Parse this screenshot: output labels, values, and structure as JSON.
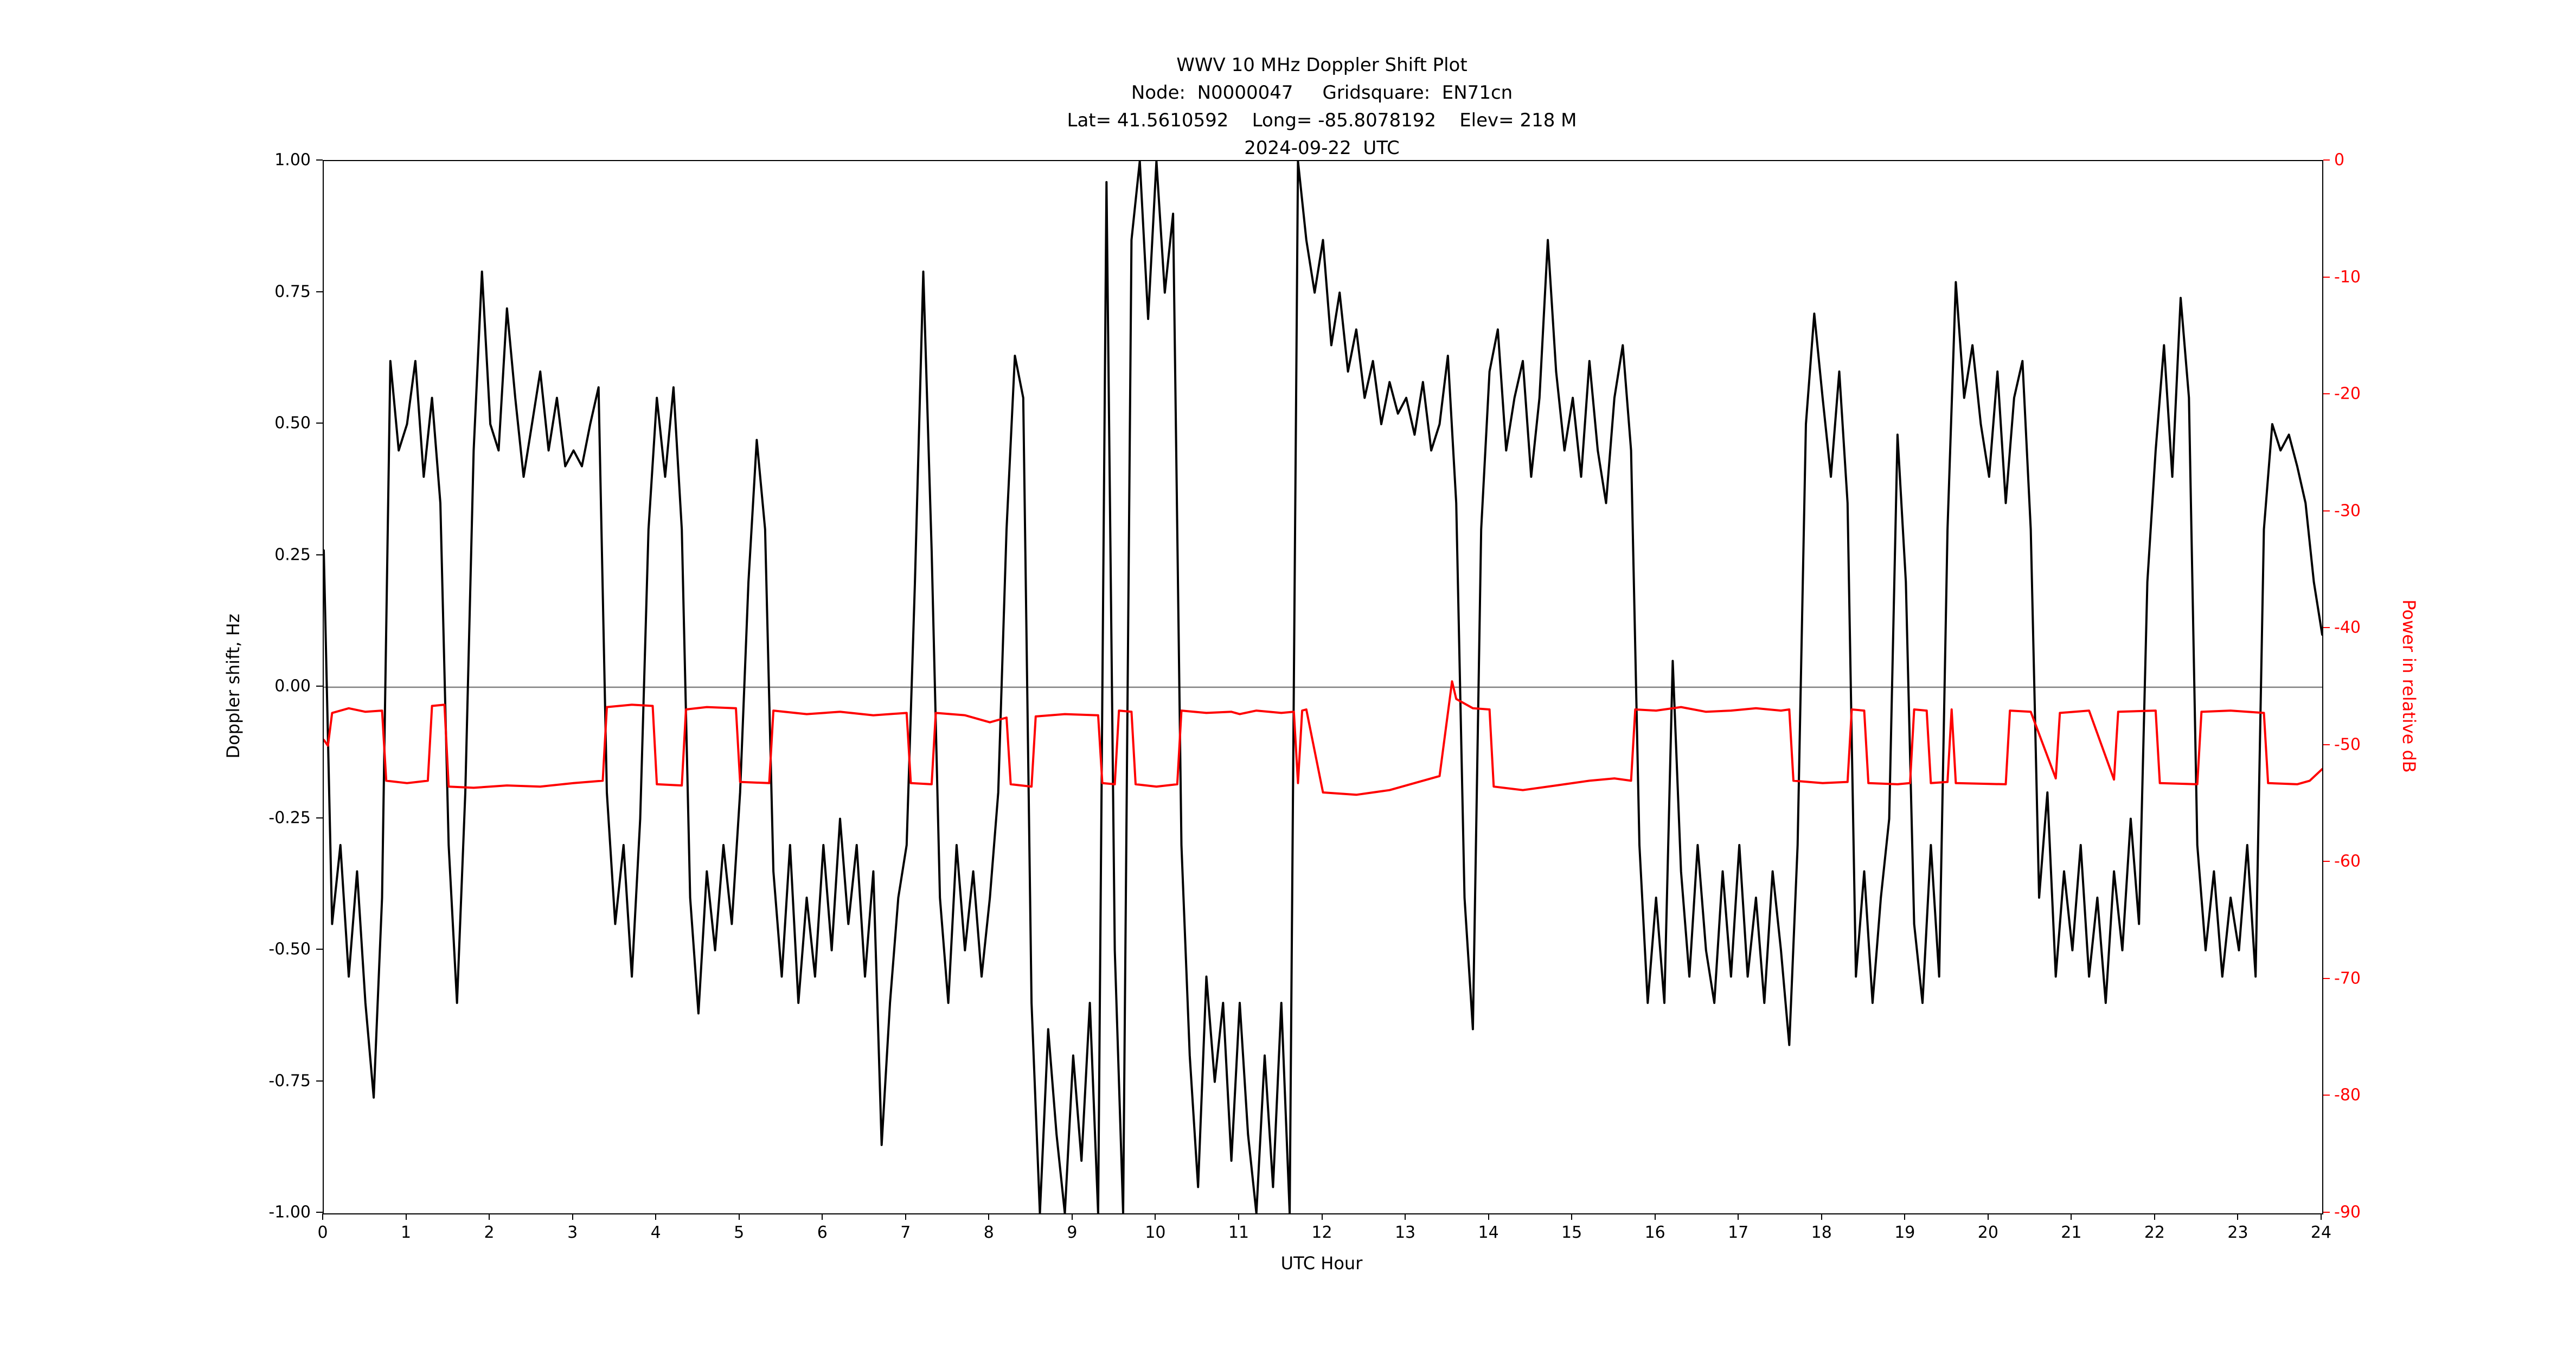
{
  "chart_data": {
    "type": "line",
    "title_lines": [
      "WWV 10 MHz Doppler Shift Plot",
      "Node:  N0000047     Gridsquare:  EN71cn",
      "Lat= 41.5610592    Long= -85.8078192    Elev= 218 M",
      "2024-09-22  UTC"
    ],
    "xlabel": "UTC Hour",
    "ylabel_left": "Doppler shift, Hz",
    "ylabel_right": "Power in relative dB",
    "xlim": [
      0,
      24
    ],
    "ylim_left": [
      -1,
      1
    ],
    "ylim_right": [
      -90,
      0
    ],
    "xticks": [
      "0",
      "1",
      "2",
      "3",
      "4",
      "5",
      "6",
      "7",
      "8",
      "9",
      "10",
      "11",
      "12",
      "13",
      "14",
      "15",
      "16",
      "17",
      "18",
      "19",
      "20",
      "21",
      "22",
      "23",
      "24"
    ],
    "yticks_left": [
      "1.00",
      "0.75",
      "0.50",
      "0.25",
      "0.00",
      "-0.25",
      "-0.50",
      "-0.75",
      "-1.00"
    ],
    "yticks_left_values": [
      1.0,
      0.75,
      0.5,
      0.25,
      0.0,
      -0.25,
      -0.5,
      -0.75,
      -1.0
    ],
    "yticks_right": [
      "0",
      "-10",
      "-20",
      "-30",
      "-40",
      "-50",
      "-60",
      "-70",
      "-80",
      "-90"
    ],
    "yticks_right_values": [
      0,
      -10,
      -20,
      -30,
      -40,
      -50,
      -60,
      -70,
      -80,
      -90
    ],
    "grid": false,
    "zero_line_value": 0.0,
    "colors": {
      "doppler": "#000000",
      "power": "#ff0000",
      "zero_line": "#808080"
    },
    "series": [
      {
        "name": "doppler_shift_hz",
        "axis": "left",
        "color": "#000000",
        "x_start": 0,
        "x_step": 0.1,
        "values": [
          0.26,
          -0.45,
          -0.3,
          -0.55,
          -0.35,
          -0.6,
          -0.78,
          -0.4,
          0.62,
          0.45,
          0.5,
          0.62,
          0.4,
          0.55,
          0.35,
          -0.3,
          -0.6,
          -0.2,
          0.45,
          0.79,
          0.5,
          0.45,
          0.72,
          0.55,
          0.4,
          0.5,
          0.6,
          0.45,
          0.55,
          0.42,
          0.45,
          0.42,
          0.5,
          0.57,
          -0.2,
          -0.45,
          -0.3,
          -0.55,
          -0.25,
          0.3,
          0.55,
          0.4,
          0.57,
          0.3,
          -0.4,
          -0.62,
          -0.35,
          -0.5,
          -0.3,
          -0.45,
          -0.2,
          0.2,
          0.47,
          0.3,
          -0.35,
          -0.55,
          -0.3,
          -0.6,
          -0.4,
          -0.55,
          -0.3,
          -0.5,
          -0.25,
          -0.45,
          -0.3,
          -0.55,
          -0.35,
          -0.87,
          -0.6,
          -0.4,
          -0.3,
          0.2,
          0.79,
          0.26,
          -0.4,
          -0.6,
          -0.3,
          -0.5,
          -0.35,
          -0.55,
          -0.4,
          -0.2,
          0.3,
          0.63,
          0.55,
          -0.6,
          -1,
          -0.65,
          -0.85,
          -1,
          -0.7,
          -0.9,
          -0.6,
          -1,
          0.96,
          -0.5,
          -1,
          0.85,
          1,
          0.7,
          1,
          0.75,
          0.9,
          -0.3,
          -0.7,
          -0.95,
          -0.55,
          -0.75,
          -0.6,
          -0.9,
          -0.6,
          -0.85,
          -1,
          -0.7,
          -0.95,
          -0.6,
          -1,
          1,
          0.85,
          0.75,
          0.85,
          0.65,
          0.75,
          0.6,
          0.68,
          0.55,
          0.62,
          0.5,
          0.58,
          0.52,
          0.55,
          0.48,
          0.58,
          0.45,
          0.5,
          0.63,
          0.35,
          -0.4,
          -0.65,
          0.3,
          0.6,
          0.68,
          0.45,
          0.55,
          0.62,
          0.4,
          0.55,
          0.85,
          0.6,
          0.45,
          0.55,
          0.4,
          0.62,
          0.45,
          0.35,
          0.55,
          0.65,
          0.45,
          -0.3,
          -0.6,
          -0.4,
          -0.6,
          0.05,
          -0.35,
          -0.55,
          -0.3,
          -0.5,
          -0.6,
          -0.35,
          -0.55,
          -0.3,
          -0.55,
          -0.4,
          -0.6,
          -0.35,
          -0.5,
          -0.68,
          -0.3,
          0.5,
          0.71,
          0.55,
          0.4,
          0.6,
          0.35,
          -0.55,
          -0.35,
          -0.6,
          -0.4,
          -0.25,
          0.48,
          0.2,
          -0.45,
          -0.6,
          -0.3,
          -0.55,
          0.3,
          0.77,
          0.55,
          0.65,
          0.5,
          0.4,
          0.6,
          0.35,
          0.55,
          0.62,
          0.3,
          -0.4,
          -0.2,
          -0.55,
          -0.35,
          -0.5,
          -0.3,
          -0.55,
          -0.4,
          -0.6,
          -0.35,
          -0.5,
          -0.25,
          -0.45,
          0.2,
          0.45,
          0.65,
          0.4,
          0.74,
          0.55,
          -0.3,
          -0.5,
          -0.35,
          -0.55,
          -0.4,
          -0.5,
          -0.3,
          -0.55,
          0.3,
          0.5,
          0.45,
          0.48,
          0.42,
          0.35,
          0.2,
          0.1
        ]
      },
      {
        "name": "power_relative_db",
        "axis": "right",
        "color": "#ff0000",
        "points": [
          [
            0,
            -49.5
          ],
          [
            0.05,
            -50
          ],
          [
            0.1,
            -47.2
          ],
          [
            0.3,
            -46.8
          ],
          [
            0.5,
            -47.1
          ],
          [
            0.7,
            -47
          ],
          [
            0.75,
            -53
          ],
          [
            1.0,
            -53.2
          ],
          [
            1.25,
            -53
          ],
          [
            1.3,
            -46.6
          ],
          [
            1.45,
            -46.5
          ],
          [
            1.5,
            -53.5
          ],
          [
            1.8,
            -53.6
          ],
          [
            2.2,
            -53.4
          ],
          [
            2.6,
            -53.5
          ],
          [
            3.0,
            -53.2
          ],
          [
            3.35,
            -53
          ],
          [
            3.4,
            -46.7
          ],
          [
            3.7,
            -46.5
          ],
          [
            3.95,
            -46.6
          ],
          [
            4.0,
            -53.3
          ],
          [
            4.3,
            -53.4
          ],
          [
            4.35,
            -46.9
          ],
          [
            4.6,
            -46.7
          ],
          [
            4.95,
            -46.8
          ],
          [
            5.0,
            -53.1
          ],
          [
            5.35,
            -53.2
          ],
          [
            5.4,
            -47
          ],
          [
            5.8,
            -47.3
          ],
          [
            6.2,
            -47.1
          ],
          [
            6.6,
            -47.4
          ],
          [
            7.0,
            -47.2
          ],
          [
            7.05,
            -53.2
          ],
          [
            7.3,
            -53.3
          ],
          [
            7.35,
            -47.2
          ],
          [
            7.7,
            -47.4
          ],
          [
            8.0,
            -48
          ],
          [
            8.2,
            -47.6
          ],
          [
            8.25,
            -53.3
          ],
          [
            8.5,
            -53.5
          ],
          [
            8.55,
            -47.5
          ],
          [
            8.9,
            -47.3
          ],
          [
            9.3,
            -47.4
          ],
          [
            9.35,
            -53.2
          ],
          [
            9.5,
            -53.3
          ],
          [
            9.55,
            -47
          ],
          [
            9.7,
            -47.1
          ],
          [
            9.75,
            -53.3
          ],
          [
            10.0,
            -53.5
          ],
          [
            10.25,
            -53.3
          ],
          [
            10.3,
            -47
          ],
          [
            10.6,
            -47.2
          ],
          [
            10.9,
            -47.1
          ],
          [
            11.0,
            -47.3
          ],
          [
            11.2,
            -47
          ],
          [
            11.5,
            -47.2
          ],
          [
            11.65,
            -47.1
          ],
          [
            11.7,
            -53.2
          ],
          [
            11.75,
            -47
          ],
          [
            11.8,
            -46.9
          ],
          [
            12.0,
            -54
          ],
          [
            12.4,
            -54.2
          ],
          [
            12.8,
            -53.8
          ],
          [
            13.2,
            -53
          ],
          [
            13.4,
            -52.6
          ],
          [
            13.55,
            -44.5
          ],
          [
            13.6,
            -46
          ],
          [
            13.8,
            -46.8
          ],
          [
            14.0,
            -46.9
          ],
          [
            14.05,
            -53.5
          ],
          [
            14.4,
            -53.8
          ],
          [
            14.8,
            -53.4
          ],
          [
            15.2,
            -53
          ],
          [
            15.5,
            -52.8
          ],
          [
            15.7,
            -53
          ],
          [
            15.75,
            -46.9
          ],
          [
            16.0,
            -47
          ],
          [
            16.3,
            -46.7
          ],
          [
            16.6,
            -47.1
          ],
          [
            16.9,
            -47
          ],
          [
            17.2,
            -46.8
          ],
          [
            17.5,
            -47
          ],
          [
            17.6,
            -46.9
          ],
          [
            17.65,
            -53
          ],
          [
            18.0,
            -53.2
          ],
          [
            18.3,
            -53.1
          ],
          [
            18.35,
            -46.9
          ],
          [
            18.5,
            -47
          ],
          [
            18.55,
            -53.2
          ],
          [
            18.9,
            -53.3
          ],
          [
            19.05,
            -53.2
          ],
          [
            19.1,
            -46.9
          ],
          [
            19.25,
            -47
          ],
          [
            19.3,
            -53.2
          ],
          [
            19.5,
            -53.1
          ],
          [
            19.55,
            -46.9
          ],
          [
            19.6,
            -53.2
          ],
          [
            20.2,
            -53.3
          ],
          [
            20.25,
            -47
          ],
          [
            20.5,
            -47.1
          ],
          [
            20.8,
            -52.8
          ],
          [
            20.85,
            -47.2
          ],
          [
            21.2,
            -47
          ],
          [
            21.5,
            -52.9
          ],
          [
            21.55,
            -47.1
          ],
          [
            22.0,
            -47
          ],
          [
            22.05,
            -53.2
          ],
          [
            22.5,
            -53.3
          ],
          [
            22.55,
            -47.1
          ],
          [
            22.9,
            -47
          ],
          [
            23.3,
            -47.2
          ],
          [
            23.35,
            -53.2
          ],
          [
            23.7,
            -53.3
          ],
          [
            23.85,
            -53
          ],
          [
            24.0,
            -52
          ]
        ]
      }
    ]
  }
}
